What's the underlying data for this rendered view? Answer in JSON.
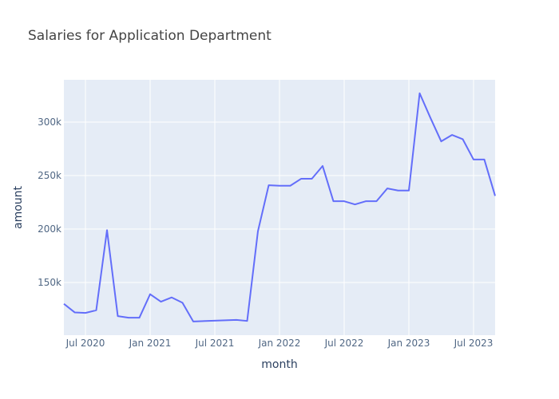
{
  "chart_data": {
    "type": "line",
    "title": "Salaries for Application Department",
    "x_label": "month",
    "y_label": "amount",
    "x": [
      "2020-05",
      "2020-06",
      "2020-07",
      "2020-08",
      "2020-09",
      "2020-10",
      "2020-11",
      "2020-12",
      "2021-01",
      "2021-02",
      "2021-03",
      "2021-04",
      "2021-05",
      "2021-09",
      "2021-10",
      "2021-11",
      "2021-12",
      "2022-01",
      "2022-02",
      "2022-03",
      "2022-04",
      "2022-05",
      "2022-06",
      "2022-07",
      "2022-08",
      "2022-09",
      "2022-10",
      "2022-11",
      "2022-12",
      "2023-01",
      "2023-02",
      "2023-03",
      "2023-04",
      "2023-05",
      "2023-06",
      "2023-07",
      "2023-08",
      "2023-09"
    ],
    "series": [
      {
        "name": "amount",
        "color": "#636efa",
        "values": [
          130000,
          122000,
          121500,
          124000,
          199000,
          118500,
          117000,
          117000,
          139000,
          132000,
          136000,
          131000,
          113500,
          115000,
          114000,
          198000,
          241000,
          240500,
          240500,
          247000,
          247000,
          259000,
          226000,
          226000,
          223000,
          226000,
          226000,
          238000,
          236000,
          236000,
          327000,
          304000,
          282000,
          288000,
          284000,
          265000,
          265000,
          231000
        ]
      }
    ],
    "xlim": [
      "2020-05",
      "2023-09"
    ],
    "xticks": [
      {
        "value": "2020-07",
        "label": "Jul 2020"
      },
      {
        "value": "2021-01",
        "label": "Jan 2021"
      },
      {
        "value": "2021-07",
        "label": "Jul 2021"
      },
      {
        "value": "2022-01",
        "label": "Jan 2022"
      },
      {
        "value": "2022-07",
        "label": "Jul 2022"
      },
      {
        "value": "2023-01",
        "label": "Jan 2023"
      },
      {
        "value": "2023-07",
        "label": "Jul 2023"
      }
    ],
    "ylim": [
      100700,
      339600
    ],
    "yticks": [
      {
        "value": 150000,
        "label": "150k"
      },
      {
        "value": 200000,
        "label": "200k"
      },
      {
        "value": 250000,
        "label": "250k"
      },
      {
        "value": 300000,
        "label": "300k"
      }
    ],
    "grid": true
  }
}
